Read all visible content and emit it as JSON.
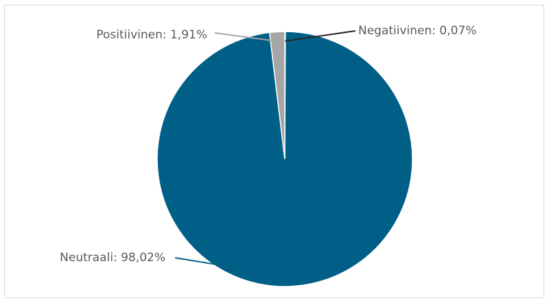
{
  "chart_data": {
    "type": "pie",
    "title": "",
    "start_angle_deg": 0,
    "direction": "clockwise",
    "slices": [
      {
        "name": "Negatiivinen",
        "value": 0.07,
        "label": "Negatiivinen: 0,07%",
        "color": "#262626"
      },
      {
        "name": "Neutraali",
        "value": 98.02,
        "label": "Neutraali: 98,02%",
        "color": "#005f87"
      },
      {
        "name": "Positiivinen",
        "value": 1.91,
        "label": "Positiivinen: 1,91%",
        "color": "#a6a6a6"
      }
    ],
    "legend": "none",
    "slice_border_color": "#ffffff"
  }
}
